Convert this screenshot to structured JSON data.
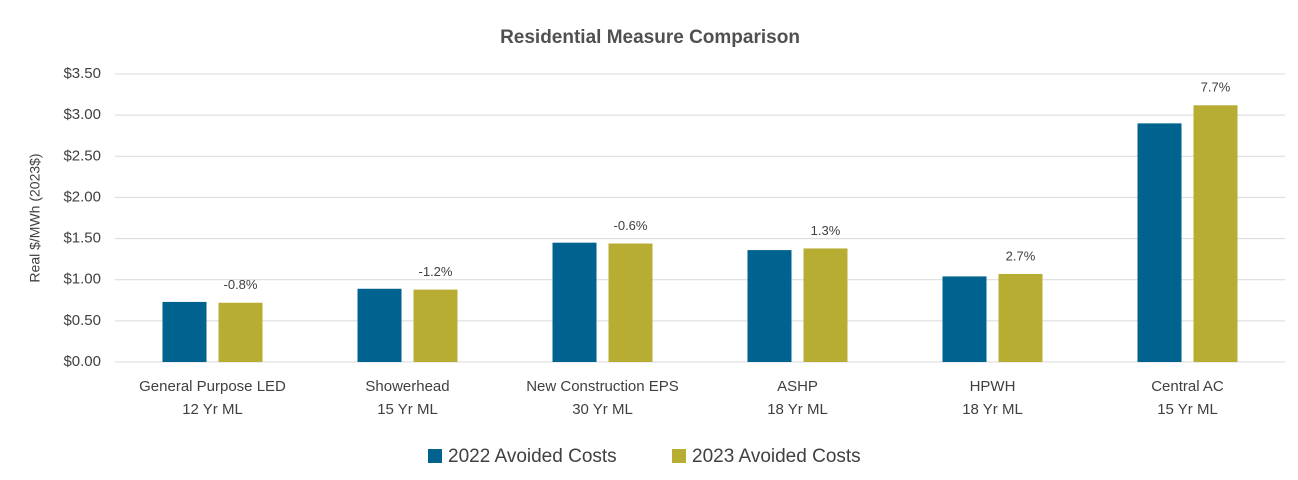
{
  "chart_data": {
    "type": "bar",
    "title": "Residential Measure Comparison",
    "y_label": "Real $/MWh (2023$)",
    "categories": [
      [
        "General Purpose LED",
        "12 Yr ML"
      ],
      [
        "Showerhead",
        "15 Yr ML"
      ],
      [
        "New Construction EPS",
        "30 Yr ML"
      ],
      [
        "ASHP",
        "18 Yr ML"
      ],
      [
        "HPWH",
        "18 Yr ML"
      ],
      [
        "Central AC",
        "15 Yr ML"
      ]
    ],
    "series": [
      {
        "name": "2022 Avoided Costs",
        "color": "#00628f",
        "values": [
          0.73,
          0.89,
          1.45,
          1.36,
          1.04,
          2.9
        ]
      },
      {
        "name": "2023 Avoided Costs",
        "color": "#b8ad33",
        "values": [
          0.72,
          0.88,
          1.44,
          1.38,
          1.07,
          3.12
        ]
      }
    ],
    "annotations": [
      "-0.8%",
      "-1.2%",
      "-0.6%",
      "1.3%",
      "2.7%",
      "7.7%"
    ],
    "ylim": [
      0,
      3.5
    ],
    "yticks": [
      {
        "value": 0,
        "label": "$0.00"
      },
      {
        "value": 0.5,
        "label": "$0.50"
      },
      {
        "value": 1,
        "label": "$1.00"
      },
      {
        "value": 1.5,
        "label": "$1.50"
      },
      {
        "value": 2,
        "label": "$2.00"
      },
      {
        "value": 2.5,
        "label": "$2.50"
      },
      {
        "value": 3,
        "label": "$3.00"
      },
      {
        "value": 3.5,
        "label": "$3.50"
      }
    ],
    "grid": true,
    "legend": "bottom"
  }
}
